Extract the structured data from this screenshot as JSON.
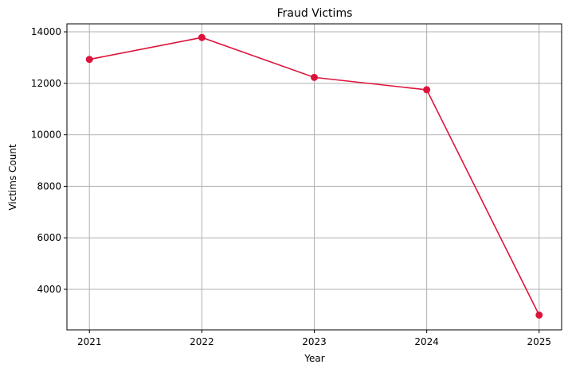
{
  "chart_data": {
    "type": "line",
    "title": "Fraud Victims",
    "xlabel": "Year",
    "ylabel": "Victims Count",
    "x": [
      2021,
      2022,
      2023,
      2024,
      2025
    ],
    "x_tick_labels": [
      "2021",
      "2022",
      "2023",
      "2024",
      "2025"
    ],
    "series": [
      {
        "values": [
          12930,
          13780,
          12230,
          11750,
          3000
        ],
        "color": "#dc143c",
        "marker": "circle"
      }
    ],
    "xlim": [
      2020.8,
      2025.2
    ],
    "ylim": [
      2425,
      14310
    ],
    "y_ticks": [
      4000,
      6000,
      8000,
      10000,
      12000,
      14000
    ],
    "y_tick_labels": [
      "4000",
      "6000",
      "8000",
      "10000",
      "12000",
      "14000"
    ],
    "grid": true,
    "grid_color": "#b0b0b0",
    "legend": "none"
  }
}
